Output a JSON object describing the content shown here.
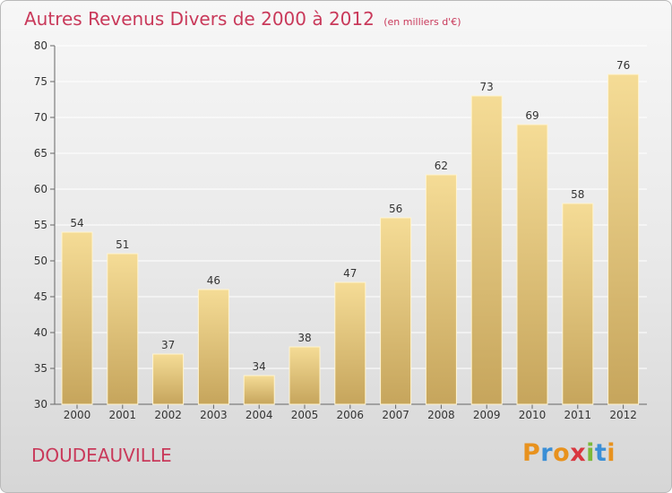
{
  "title": "Autres Revenus Divers de 2000 à 2012",
  "unit_note": "(en milliers d'€)",
  "town": "DOUDEAUVILLE",
  "logo": {
    "letters": [
      "P",
      "r",
      "o",
      "x",
      "i",
      "t",
      "i"
    ],
    "colors": [
      "#e8921e",
      "#3b8fd6",
      "#e8921e",
      "#d9373f",
      "#7cb93a",
      "#3b8fd6",
      "#e8921e"
    ]
  },
  "colors": {
    "title": "#c9395a",
    "bar_top": "#f5dc96",
    "bar_bottom": "#c6a55c",
    "grid": "#ffffff",
    "axis_text": "#333333"
  },
  "chart_data": {
    "type": "bar",
    "categories": [
      "2000",
      "2001",
      "2002",
      "2003",
      "2004",
      "2005",
      "2006",
      "2007",
      "2008",
      "2009",
      "2010",
      "2011",
      "2012"
    ],
    "values": [
      54,
      51,
      37,
      46,
      34,
      38,
      47,
      56,
      62,
      73,
      69,
      58,
      76
    ],
    "ylim": [
      30,
      80
    ],
    "yticks": [
      30,
      35,
      40,
      45,
      50,
      55,
      60,
      65,
      70,
      75,
      80
    ],
    "grid": true,
    "data_labels": true,
    "xlabel": "",
    "ylabel": ""
  }
}
